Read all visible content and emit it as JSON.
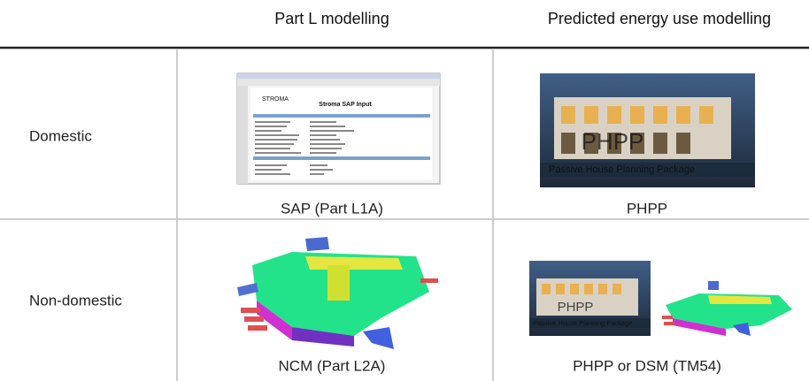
{
  "table": {
    "columns": [
      "Part L modelling",
      "Predicted energy use modelling"
    ],
    "rows": [
      {
        "label": "Domestic",
        "cells": [
          "SAP (Part L1A)",
          "PHPP"
        ]
      },
      {
        "label": "Non-domestic",
        "cells": [
          "NCM (Part L2A)",
          "PHPP or DSM (TM54)"
        ]
      }
    ]
  },
  "images": {
    "sap_logo": "STROMA",
    "sap_title": "Stroma SAP Input",
    "phpp_logo": "PHPP",
    "phpp_banner": "Passive House Planning Package"
  }
}
